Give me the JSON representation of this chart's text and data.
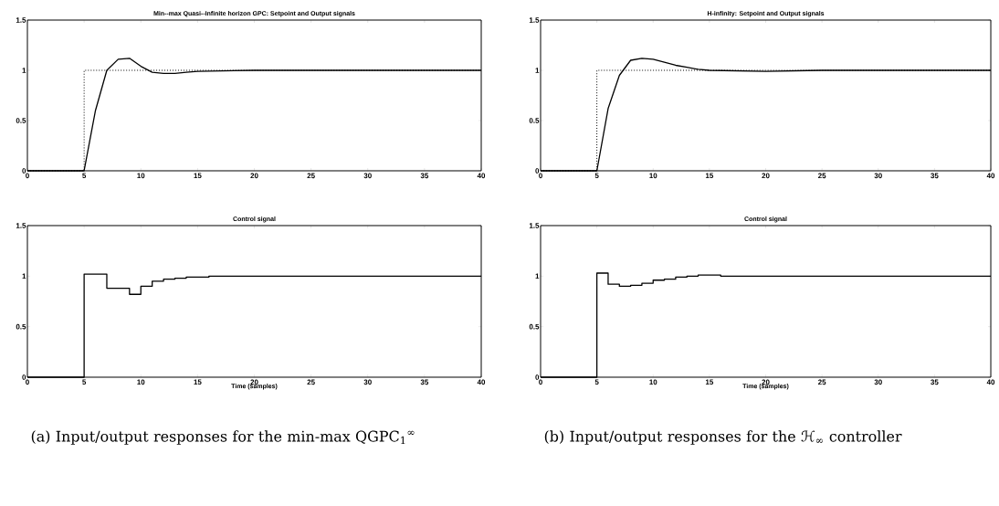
{
  "chart_data": [
    {
      "type": "line",
      "title": "Min--max Quasi--Infinite horizon GPC: Setpoint and Output signals",
      "xlim": [
        0,
        40
      ],
      "ylim": [
        0,
        1.5
      ],
      "xticks": [
        0,
        5,
        10,
        15,
        20,
        25,
        30,
        35,
        40
      ],
      "yticks": [
        0,
        0.5,
        1,
        1.5
      ],
      "series": [
        {
          "type": "step",
          "color": "#000000",
          "line_style": "dotted",
          "x": [
            0,
            5,
            40
          ],
          "values": [
            0,
            1,
            1
          ]
        },
        {
          "type": "line",
          "color": "#000000",
          "line_style": "solid",
          "x": [
            0,
            5,
            6,
            7,
            8,
            9,
            10,
            11,
            12,
            13,
            14,
            15,
            20,
            40
          ],
          "values": [
            0,
            0,
            0.6,
            1.0,
            1.11,
            1.12,
            1.04,
            0.98,
            0.97,
            0.97,
            0.98,
            0.99,
            1.0,
            1.0
          ]
        }
      ]
    },
    {
      "type": "line",
      "title": "H-infinity: Setpoint and Output signals",
      "xlim": [
        0,
        40
      ],
      "ylim": [
        0,
        1.5
      ],
      "xticks": [
        0,
        5,
        10,
        15,
        20,
        25,
        30,
        35,
        40
      ],
      "yticks": [
        0,
        0.5,
        1,
        1.5
      ],
      "series": [
        {
          "type": "step",
          "color": "#000000",
          "line_style": "dotted",
          "x": [
            0,
            5,
            40
          ],
          "values": [
            0,
            1,
            1
          ]
        },
        {
          "type": "line",
          "color": "#000000",
          "line_style": "solid",
          "x": [
            0,
            5,
            6,
            7,
            8,
            9,
            10,
            11,
            12,
            13,
            14,
            15,
            20,
            25,
            40
          ],
          "values": [
            0,
            0,
            0.62,
            0.95,
            1.1,
            1.12,
            1.11,
            1.08,
            1.05,
            1.03,
            1.01,
            1.0,
            0.99,
            1.0,
            1.0
          ]
        }
      ]
    },
    {
      "type": "step",
      "title": "Control signal",
      "xlabel": "Time (samples)",
      "xlim": [
        0,
        40
      ],
      "ylim": [
        0,
        1.5
      ],
      "xticks": [
        0,
        5,
        10,
        15,
        20,
        25,
        30,
        35,
        40
      ],
      "yticks": [
        0,
        0.5,
        1,
        1.5
      ],
      "annotations": [
        "(a) Input/output responses for the min-max QGPC$_{1}$$^{∞}$"
      ],
      "series": [
        {
          "color": "#000000",
          "line_style": "solid",
          "x": [
            0,
            5,
            6,
            7,
            8,
            9,
            10,
            11,
            12,
            13,
            14,
            15,
            16,
            40
          ],
          "values": [
            0,
            1.02,
            1.02,
            0.88,
            0.88,
            0.82,
            0.9,
            0.95,
            0.97,
            0.98,
            0.99,
            0.99,
            1.0,
            1.0
          ]
        }
      ]
    },
    {
      "type": "step",
      "title": "Control signal",
      "xlabel": "Time (samples)",
      "xlim": [
        0,
        40
      ],
      "ylim": [
        0,
        1.5
      ],
      "xticks": [
        0,
        5,
        10,
        15,
        20,
        25,
        30,
        35,
        40
      ],
      "yticks": [
        0,
        0.5,
        1,
        1.5
      ],
      "annotations": [
        "(b) Input/output responses for the ℋ$_{∞}$ controller"
      ],
      "series": [
        {
          "color": "#000000",
          "line_style": "solid",
          "x": [
            0,
            5,
            6,
            7,
            8,
            9,
            10,
            11,
            12,
            13,
            14,
            15,
            16,
            40
          ],
          "values": [
            0,
            1.03,
            0.92,
            0.9,
            0.91,
            0.93,
            0.96,
            0.97,
            0.99,
            1.0,
            1.01,
            1.01,
            1.0,
            1.0
          ]
        }
      ]
    }
  ]
}
